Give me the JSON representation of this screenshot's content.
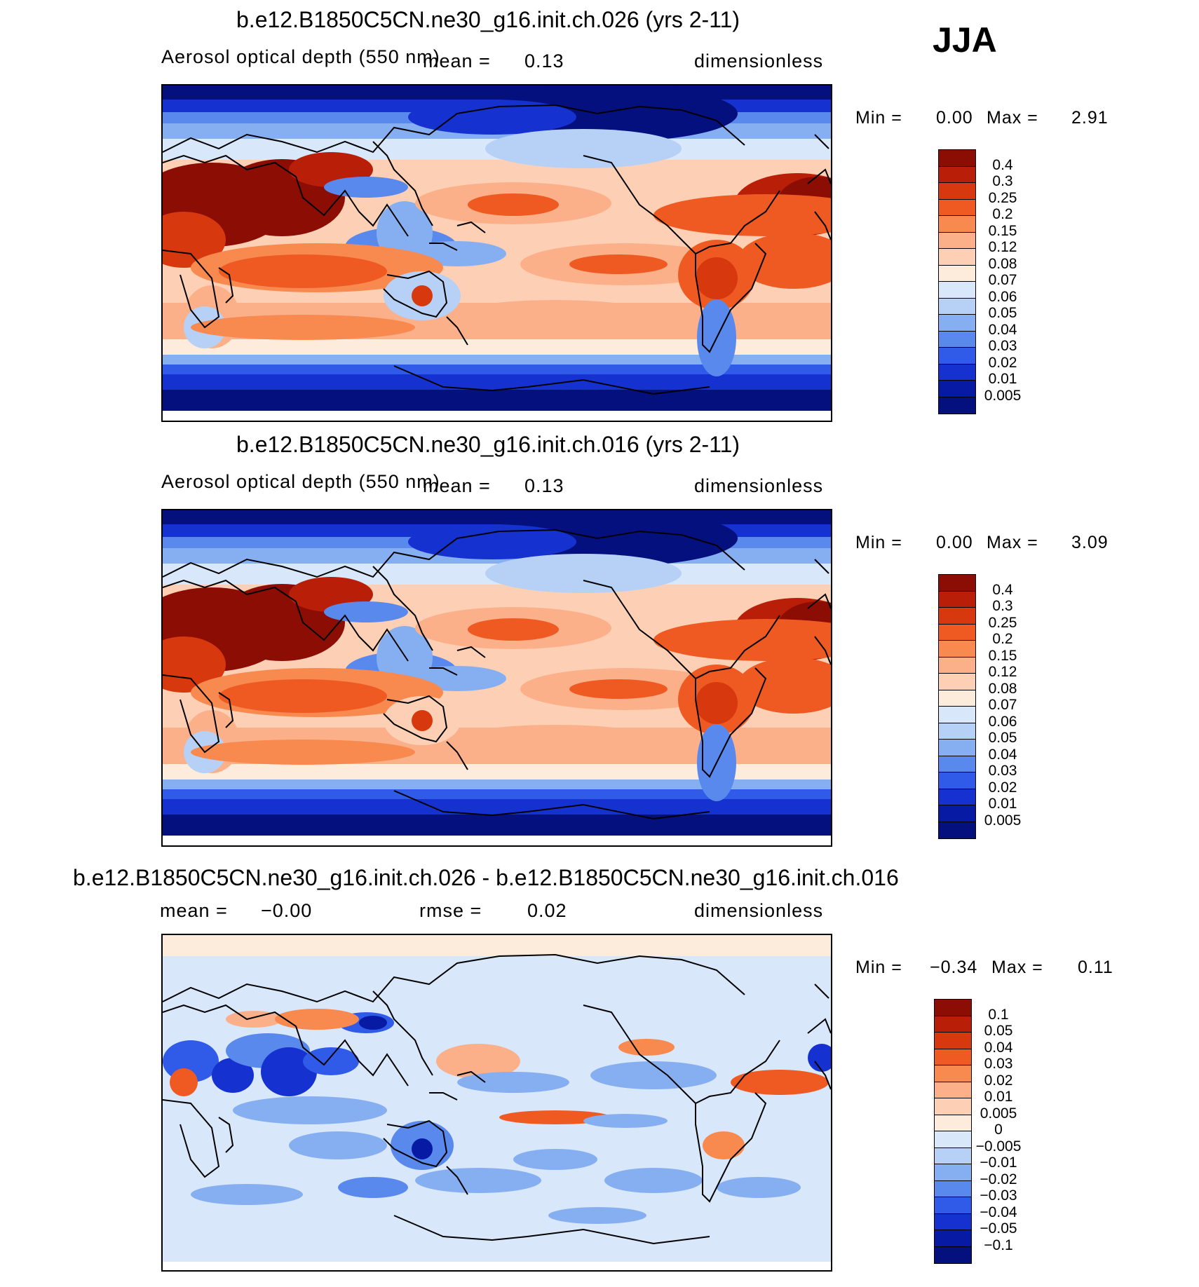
{
  "season": "JJA",
  "panels": [
    {
      "title": "b.e12.B1850C5CN.ne30_g16.init.ch.026 (yrs 2-11)",
      "variable": "Aerosol optical depth (550 nm)",
      "mean_label": "mean =",
      "mean_value": "0.13",
      "units": "dimensionless",
      "min_label": "Min =",
      "min_value": "0.00",
      "max_label": "Max =",
      "max_value": "2.91",
      "levels": [
        "0.4",
        "0.3",
        "0.25",
        "0.2",
        "0.15",
        "0.12",
        "0.08",
        "0.07",
        "0.06",
        "0.05",
        "0.04",
        "0.03",
        "0.02",
        "0.01",
        "0.005"
      ],
      "colors": [
        "#8b0d04",
        "#b81e08",
        "#d8380e",
        "#ef5a22",
        "#f8894f",
        "#fcb08a",
        "#fdd0b5",
        "#fdebdc",
        "#d8e7fa",
        "#b6d0f6",
        "#86aff2",
        "#5a89ee",
        "#2f5be8",
        "#1532d0",
        "#061aa3",
        "#04107d"
      ]
    },
    {
      "title": "b.e12.B1850C5CN.ne30_g16.init.ch.016 (yrs 2-11)",
      "variable": "Aerosol optical depth (550 nm)",
      "mean_label": "mean =",
      "mean_value": "0.13",
      "units": "dimensionless",
      "min_label": "Min =",
      "min_value": "0.00",
      "max_label": "Max =",
      "max_value": "3.09",
      "levels": [
        "0.4",
        "0.3",
        "0.25",
        "0.2",
        "0.15",
        "0.12",
        "0.08",
        "0.07",
        "0.06",
        "0.05",
        "0.04",
        "0.03",
        "0.02",
        "0.01",
        "0.005"
      ],
      "colors": [
        "#8b0d04",
        "#b81e08",
        "#d8380e",
        "#ef5a22",
        "#f8894f",
        "#fcb08a",
        "#fdd0b5",
        "#fdebdc",
        "#d8e7fa",
        "#b6d0f6",
        "#86aff2",
        "#5a89ee",
        "#2f5be8",
        "#1532d0",
        "#061aa3",
        "#04107d"
      ]
    },
    {
      "title": "b.e12.B1850C5CN.ne30_g16.init.ch.026 - b.e12.B1850C5CN.ne30_g16.init.ch.016",
      "mean_label": "mean =",
      "mean_value": "−0.00",
      "rmse_label": "rmse =",
      "rmse_value": "0.02",
      "units": "dimensionless",
      "min_label": "Min =",
      "min_value": "−0.34",
      "max_label": "Max =",
      "max_value": "0.11",
      "levels": [
        "0.1",
        "0.05",
        "0.04",
        "0.03",
        "0.02",
        "0.01",
        "0.005",
        "0",
        "−0.005",
        "−0.01",
        "−0.02",
        "−0.03",
        "−0.04",
        "−0.05",
        "−0.1"
      ],
      "colors": [
        "#8b0d04",
        "#b81e08",
        "#d8380e",
        "#ef5a22",
        "#f8894f",
        "#fcb08a",
        "#fdd0b5",
        "#fdebdc",
        "#d8e7fa",
        "#b6d0f6",
        "#86aff2",
        "#5a89ee",
        "#2f5be8",
        "#1532d0",
        "#061aa3",
        "#04107d"
      ]
    }
  ],
  "chart_data": [
    {
      "type": "heatmap",
      "title": "b.e12.B1850C5CN.ne30_g16.init.ch.026 (yrs 2-11)",
      "variable": "Aerosol optical depth (550 nm)",
      "units": "dimensionless",
      "mean": 0.13,
      "min": 0.0,
      "max": 2.91,
      "contour_levels": [
        0.005,
        0.01,
        0.02,
        0.03,
        0.04,
        0.05,
        0.06,
        0.07,
        0.08,
        0.12,
        0.15,
        0.2,
        0.25,
        0.3,
        0.4
      ]
    },
    {
      "type": "heatmap",
      "title": "b.e12.B1850C5CN.ne30_g16.init.ch.016 (yrs 2-11)",
      "variable": "Aerosol optical depth (550 nm)",
      "units": "dimensionless",
      "mean": 0.13,
      "min": 0.0,
      "max": 3.09,
      "contour_levels": [
        0.005,
        0.01,
        0.02,
        0.03,
        0.04,
        0.05,
        0.06,
        0.07,
        0.08,
        0.12,
        0.15,
        0.2,
        0.25,
        0.3,
        0.4
      ]
    },
    {
      "type": "heatmap",
      "title": "b.e12.B1850C5CN.ne30_g16.init.ch.026 - b.e12.B1850C5CN.ne30_g16.init.ch.016",
      "units": "dimensionless",
      "mean": -0.0,
      "rmse": 0.02,
      "min": -0.34,
      "max": 0.11,
      "contour_levels": [
        -0.1,
        -0.05,
        -0.04,
        -0.03,
        -0.02,
        -0.01,
        -0.005,
        0,
        0.005,
        0.01,
        0.02,
        0.03,
        0.04,
        0.05,
        0.1
      ]
    }
  ]
}
